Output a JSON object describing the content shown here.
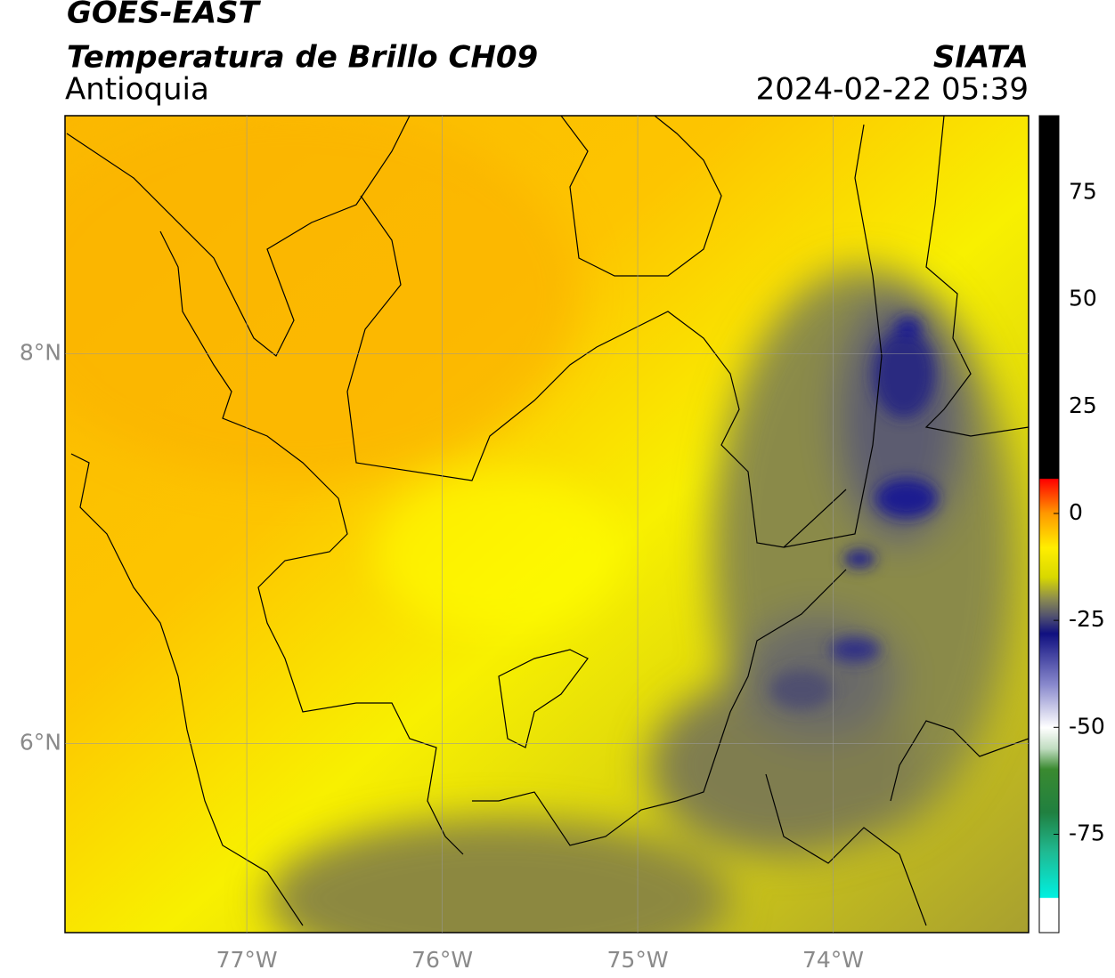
{
  "header": {
    "title": "GOES-EAST",
    "subtitle": "Temperatura de Brillo CH09",
    "region": "Antioquia",
    "source": "SIATA",
    "datetime": "2024-02-22 05:39"
  },
  "map": {
    "xlim": [
      -77.93,
      -73.0
    ],
    "ylim": [
      5.03,
      9.22
    ],
    "xticks": [
      {
        "value": -77,
        "label": "77°W"
      },
      {
        "value": -76,
        "label": "76°W"
      },
      {
        "value": -75,
        "label": "75°W"
      },
      {
        "value": -74,
        "label": "74°W"
      }
    ],
    "yticks": [
      {
        "value": 8,
        "label": "8°N"
      },
      {
        "value": 6,
        "label": "6°N"
      }
    ],
    "grid": true
  },
  "colorbar": {
    "lim": [
      -98,
      93
    ],
    "ticks": [
      75,
      50,
      25,
      0,
      -25,
      -50,
      -75
    ]
  }
}
